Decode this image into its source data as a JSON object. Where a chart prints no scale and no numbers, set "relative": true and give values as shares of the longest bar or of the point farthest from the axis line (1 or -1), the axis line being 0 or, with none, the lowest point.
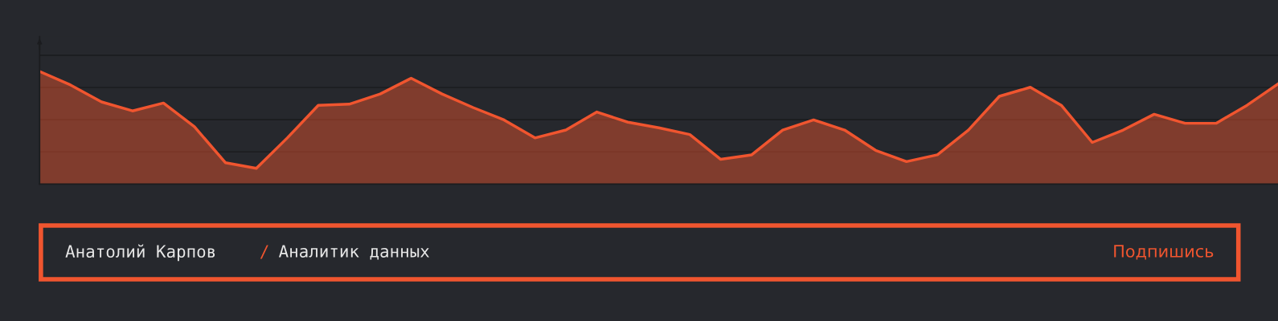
{
  "chart_data": {
    "type": "area",
    "relative": true,
    "grid": "y",
    "color": "#f0552f",
    "categories": [
      null,
      null,
      null,
      null,
      null,
      null,
      null,
      null,
      null,
      null,
      null,
      null,
      null,
      null,
      null,
      null,
      null,
      null,
      null,
      null,
      null,
      null,
      null,
      null,
      null,
      null,
      null,
      null,
      null,
      null,
      null,
      null,
      null,
      null,
      null,
      null,
      null,
      null,
      null,
      null,
      null
    ],
    "values": [
      1.0,
      0.88,
      0.73,
      0.65,
      0.72,
      0.51,
      0.19,
      0.14,
      0.41,
      0.7,
      0.71,
      0.8,
      0.94,
      0.8,
      0.68,
      0.57,
      0.41,
      0.48,
      0.64,
      0.55,
      0.5,
      0.44,
      0.22,
      0.26,
      0.48,
      0.57,
      0.48,
      0.3,
      0.2,
      0.26,
      0.48,
      0.78,
      0.86,
      0.7,
      0.37,
      0.48,
      0.62,
      0.54,
      0.54,
      0.7,
      0.89
    ],
    "annotations": [
      "Анатолий Карпов",
      "/",
      "Аналитик данных",
      "Подпишись"
    ]
  }
}
